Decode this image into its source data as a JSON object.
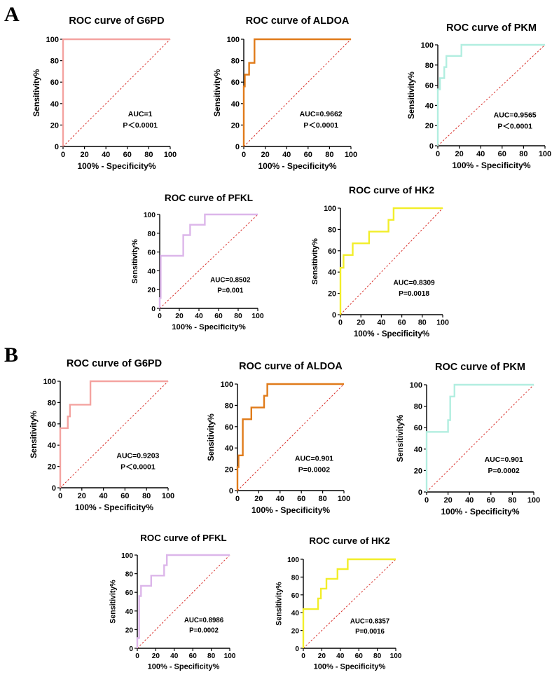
{
  "figure": {
    "panel_a_label": "A",
    "panel_b_label": "B"
  },
  "chart_data": [
    {
      "panel": "A",
      "type": "line",
      "title": "ROC curve of G6PD",
      "xlabel": "100% - Specificity%",
      "ylabel": "Sensitivity%",
      "xlim": [
        0,
        100
      ],
      "ylim": [
        0,
        100
      ],
      "xticks": [
        0,
        20,
        40,
        60,
        80,
        100
      ],
      "yticks": [
        0,
        20,
        40,
        60,
        80,
        100
      ],
      "series": [
        {
          "name": "ROC",
          "color": "#f4a3a0",
          "x": [
            0,
            0,
            100
          ],
          "y": [
            0,
            100,
            100
          ]
        },
        {
          "name": "reference",
          "color": "#d9302b",
          "dashed": true,
          "x": [
            0,
            100
          ],
          "y": [
            0,
            100
          ]
        }
      ],
      "annotations": [
        "AUC=1",
        "P＜0.0001"
      ]
    },
    {
      "panel": "A",
      "type": "line",
      "title": "ROC curve of ALDOA",
      "xlabel": "100% - Specificity%",
      "ylabel": "Sensitivity%",
      "xlim": [
        0,
        100
      ],
      "ylim": [
        0,
        100
      ],
      "xticks": [
        0,
        20,
        40,
        60,
        80,
        100
      ],
      "yticks": [
        0,
        20,
        40,
        60,
        80,
        100
      ],
      "series": [
        {
          "name": "ROC",
          "color": "#e07b1a",
          "x": [
            0,
            0,
            1,
            1,
            5,
            5,
            10,
            10,
            100
          ],
          "y": [
            0,
            56,
            56,
            67,
            67,
            78,
            78,
            100,
            100
          ]
        },
        {
          "name": "reference",
          "color": "#d9302b",
          "dashed": true,
          "x": [
            0,
            100
          ],
          "y": [
            0,
            100
          ]
        }
      ],
      "annotations": [
        "AUC=0.9662",
        "P＜0.0001"
      ]
    },
    {
      "panel": "A",
      "type": "line",
      "title": "ROC curve of PKM",
      "xlabel": "100% - Specificity%",
      "ylabel": "Sensitivity%",
      "xlim": [
        0,
        100
      ],
      "ylim": [
        0,
        100
      ],
      "xticks": [
        0,
        20,
        40,
        60,
        80,
        100
      ],
      "yticks": [
        0,
        20,
        40,
        60,
        80,
        100
      ],
      "series": [
        {
          "name": "ROC",
          "color": "#b2eee0",
          "x": [
            0,
            0,
            2,
            2,
            6,
            6,
            8,
            8,
            22,
            22,
            100
          ],
          "y": [
            0,
            56,
            56,
            67,
            67,
            78,
            78,
            89,
            89,
            100,
            100
          ]
        },
        {
          "name": "reference",
          "color": "#d9302b",
          "dashed": true,
          "x": [
            0,
            100
          ],
          "y": [
            0,
            100
          ]
        }
      ],
      "annotations": [
        "AUC=0.9565",
        "P＜0.0001"
      ]
    },
    {
      "panel": "A",
      "type": "line",
      "title": "ROC curve of PFKL",
      "xlabel": "100% - Specificity%",
      "ylabel": "Sensitivity%",
      "xlim": [
        0,
        100
      ],
      "ylim": [
        0,
        100
      ],
      "xticks": [
        0,
        20,
        40,
        60,
        80,
        100
      ],
      "yticks": [
        0,
        20,
        40,
        60,
        80,
        100
      ],
      "series": [
        {
          "name": "ROC",
          "color": "#dcb6ea",
          "x": [
            0,
            0,
            1,
            1,
            24,
            24,
            31,
            31,
            38,
            38,
            46,
            46,
            100
          ],
          "y": [
            0,
            11,
            11,
            56,
            56,
            78,
            78,
            89,
            89,
            89,
            89,
            100,
            100
          ]
        },
        {
          "name": "reference",
          "color": "#d9302b",
          "dashed": true,
          "x": [
            0,
            100
          ],
          "y": [
            0,
            100
          ]
        }
      ],
      "annotations": [
        "AUC=0.8502",
        "P=0.001"
      ]
    },
    {
      "panel": "A",
      "type": "line",
      "title": "ROC curve of HK2",
      "xlabel": "100% - Specificity%",
      "ylabel": "Sensitivity%",
      "xlim": [
        0,
        100
      ],
      "ylim": [
        0,
        100
      ],
      "xticks": [
        0,
        20,
        40,
        60,
        80,
        100
      ],
      "yticks": [
        0,
        20,
        40,
        60,
        80,
        100
      ],
      "series": [
        {
          "name": "ROC",
          "color": "#f2ee2a",
          "x": [
            0,
            0,
            3,
            3,
            12,
            12,
            28,
            28,
            47,
            47,
            52,
            52,
            100
          ],
          "y": [
            0,
            44,
            44,
            56,
            56,
            67,
            67,
            78,
            78,
            89,
            89,
            100,
            100
          ]
        },
        {
          "name": "reference",
          "color": "#d9302b",
          "dashed": true,
          "x": [
            0,
            100
          ],
          "y": [
            0,
            100
          ]
        }
      ],
      "annotations": [
        "AUC=0.8309",
        "P=0.0018"
      ]
    },
    {
      "panel": "B",
      "type": "line",
      "title": "ROC curve of G6PD",
      "xlabel": "100% - Specificity%",
      "ylabel": "Sensitivity%",
      "xlim": [
        0,
        100
      ],
      "ylim": [
        0,
        100
      ],
      "xticks": [
        0,
        20,
        40,
        60,
        80,
        100
      ],
      "yticks": [
        0,
        20,
        40,
        60,
        80,
        100
      ],
      "series": [
        {
          "name": "ROC",
          "color": "#f4a3a0",
          "x": [
            0,
            0,
            7,
            7,
            9,
            9,
            12,
            12,
            28,
            28,
            100
          ],
          "y": [
            0,
            56,
            56,
            67,
            67,
            78,
            78,
            78,
            78,
            100,
            100
          ]
        },
        {
          "name": "reference",
          "color": "#d9302b",
          "dashed": true,
          "x": [
            0,
            100
          ],
          "y": [
            0,
            100
          ]
        }
      ],
      "annotations": [
        "AUC=0.9203",
        "P＜0.0001"
      ]
    },
    {
      "panel": "B",
      "type": "line",
      "title": "ROC curve of ALDOA",
      "xlabel": "100% - Specificity%",
      "ylabel": "Sensitivity%",
      "xlim": [
        0,
        100
      ],
      "ylim": [
        0,
        100
      ],
      "xticks": [
        0,
        20,
        40,
        60,
        80,
        100
      ],
      "yticks": [
        0,
        20,
        40,
        60,
        80,
        100
      ],
      "series": [
        {
          "name": "ROC",
          "color": "#e07b1a",
          "x": [
            0,
            0,
            1,
            1,
            5,
            5,
            13,
            13,
            25,
            25,
            28,
            28,
            100
          ],
          "y": [
            0,
            22,
            22,
            33,
            33,
            67,
            67,
            78,
            78,
            89,
            89,
            100,
            100
          ]
        },
        {
          "name": "reference",
          "color": "#d9302b",
          "dashed": true,
          "x": [
            0,
            100
          ],
          "y": [
            0,
            100
          ]
        }
      ],
      "annotations": [
        "AUC=0.901",
        "P=0.0002"
      ]
    },
    {
      "panel": "B",
      "type": "line",
      "title": "ROC curve of PKM",
      "xlabel": "100% - Specificity%",
      "ylabel": "Sensitivity%",
      "xlim": [
        0,
        100
      ],
      "ylim": [
        0,
        100
      ],
      "xticks": [
        0,
        20,
        40,
        60,
        80,
        100
      ],
      "yticks": [
        0,
        20,
        40,
        60,
        80,
        100
      ],
      "series": [
        {
          "name": "ROC",
          "color": "#b2eee0",
          "x": [
            0,
            0,
            20,
            20,
            22,
            22,
            26,
            26,
            100
          ],
          "y": [
            0,
            56,
            56,
            67,
            67,
            89,
            89,
            100,
            100
          ]
        },
        {
          "name": "reference",
          "color": "#d9302b",
          "dashed": true,
          "x": [
            0,
            100
          ],
          "y": [
            0,
            100
          ]
        }
      ],
      "annotations": [
        "AUC=0.901",
        "P=0.0002"
      ]
    },
    {
      "panel": "B",
      "type": "line",
      "title": "ROC curve of PFKL",
      "xlabel": "100% - Specificity%",
      "ylabel": "Sensitivity%",
      "xlim": [
        0,
        100
      ],
      "ylim": [
        0,
        100
      ],
      "xticks": [
        0,
        20,
        40,
        60,
        80,
        100
      ],
      "yticks": [
        0,
        20,
        40,
        60,
        80,
        100
      ],
      "series": [
        {
          "name": "ROC",
          "color": "#dcb6ea",
          "x": [
            0,
            0,
            2,
            2,
            4,
            4,
            15,
            15,
            29,
            29,
            32,
            32,
            100
          ],
          "y": [
            0,
            11,
            11,
            56,
            56,
            67,
            67,
            78,
            78,
            89,
            89,
            100,
            100
          ]
        },
        {
          "name": "reference",
          "color": "#d9302b",
          "dashed": true,
          "x": [
            0,
            100
          ],
          "y": [
            0,
            100
          ]
        }
      ],
      "annotations": [
        "AUC=0.8986",
        "P=0.0002"
      ]
    },
    {
      "panel": "B",
      "type": "line",
      "title": "ROC curve of HK2",
      "xlabel": "100% - Specificity%",
      "ylabel": "Sensitivity%",
      "xlim": [
        0,
        100
      ],
      "ylim": [
        0,
        100
      ],
      "xticks": [
        0,
        20,
        40,
        60,
        80,
        100
      ],
      "yticks": [
        0,
        20,
        40,
        60,
        80,
        100
      ],
      "series": [
        {
          "name": "ROC",
          "color": "#f2ee2a",
          "x": [
            0,
            0,
            16,
            16,
            19,
            19,
            25,
            25,
            37,
            37,
            48,
            48,
            100
          ],
          "y": [
            0,
            44,
            44,
            56,
            56,
            67,
            67,
            78,
            78,
            89,
            89,
            100,
            100
          ]
        },
        {
          "name": "reference",
          "color": "#d9302b",
          "dashed": true,
          "x": [
            0,
            100
          ],
          "y": [
            0,
            100
          ]
        }
      ],
      "annotations": [
        "AUC=0.8357",
        "P=0.0016"
      ]
    }
  ]
}
